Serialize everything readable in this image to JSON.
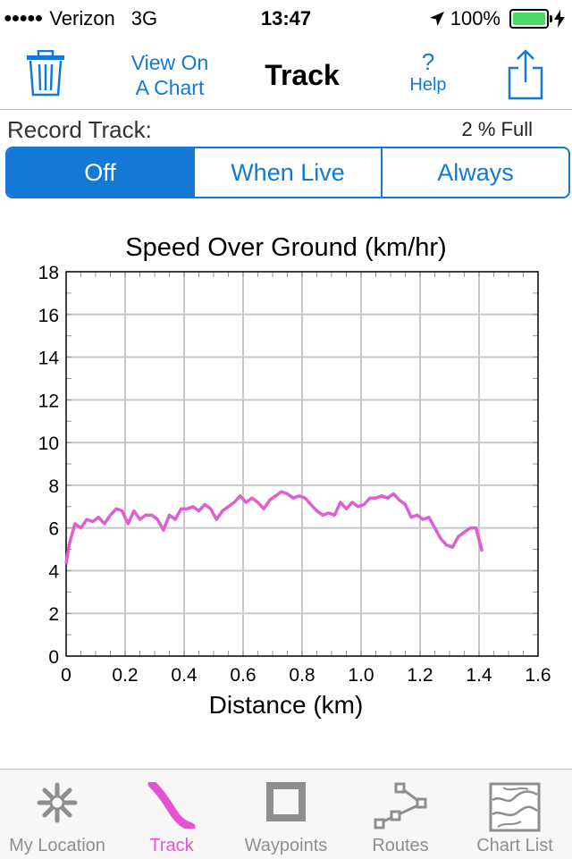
{
  "status": {
    "signal_dots": "●●●●●",
    "carrier": "Verizon",
    "network": "3G",
    "time": "13:47",
    "battery_percent": "100%"
  },
  "nav": {
    "view_chart_line1": "View On",
    "view_chart_line2": "A Chart",
    "title": "Track",
    "help_symbol": "?",
    "help_label": "Help"
  },
  "record": {
    "label": "Record Track:",
    "capacity": "2 % Full",
    "options": [
      "Off",
      "When Live",
      "Always"
    ],
    "selected": "Off"
  },
  "chart_data": {
    "type": "line",
    "title": "Speed Over Ground (km/hr)",
    "xlabel": "Distance (km)",
    "ylabel": "",
    "xlim": [
      0,
      1.6
    ],
    "ylim": [
      0,
      18
    ],
    "xticks": [
      "0",
      "0.2",
      "0.4",
      "0.6",
      "0.8",
      "1.0",
      "1.2",
      "1.4",
      "1.6"
    ],
    "yticks": [
      "0",
      "2",
      "4",
      "6",
      "8",
      "10",
      "12",
      "14",
      "16",
      "18"
    ],
    "grid": true,
    "color": "#dd5fd2",
    "series": [
      {
        "x": [
          0.0,
          0.01,
          0.03,
          0.05,
          0.07,
          0.09,
          0.11,
          0.13,
          0.15,
          0.17,
          0.19,
          0.21,
          0.23,
          0.25,
          0.27,
          0.29,
          0.31,
          0.33,
          0.35,
          0.37,
          0.39,
          0.41,
          0.43,
          0.45,
          0.47,
          0.49,
          0.51,
          0.53,
          0.55,
          0.57,
          0.59,
          0.61,
          0.63,
          0.65,
          0.67,
          0.69,
          0.71,
          0.73,
          0.75,
          0.77,
          0.79,
          0.81,
          0.83,
          0.85,
          0.87,
          0.89,
          0.91,
          0.93,
          0.95,
          0.97,
          0.99,
          1.01,
          1.03,
          1.05,
          1.07,
          1.09,
          1.11,
          1.13,
          1.15,
          1.17,
          1.19,
          1.21,
          1.23,
          1.25,
          1.27,
          1.29,
          1.31,
          1.33,
          1.35,
          1.37,
          1.39,
          1.41
        ],
        "y": [
          4.3,
          5.2,
          6.2,
          6.0,
          6.4,
          6.3,
          6.5,
          6.2,
          6.6,
          6.9,
          6.8,
          6.2,
          6.8,
          6.4,
          6.6,
          6.6,
          6.4,
          5.9,
          6.6,
          6.4,
          6.9,
          6.9,
          7.0,
          6.8,
          7.1,
          6.9,
          6.4,
          6.8,
          7.0,
          7.2,
          7.5,
          7.2,
          7.4,
          7.2,
          6.9,
          7.3,
          7.5,
          7.7,
          7.6,
          7.4,
          7.5,
          7.4,
          7.1,
          6.8,
          6.6,
          6.7,
          6.6,
          7.2,
          6.9,
          7.2,
          7.0,
          7.1,
          7.4,
          7.4,
          7.5,
          7.4,
          7.6,
          7.3,
          7.1,
          6.5,
          6.6,
          6.4,
          6.5,
          6.0,
          5.5,
          5.2,
          5.1,
          5.6,
          5.8,
          6.0,
          6.0,
          4.9
        ]
      }
    ]
  },
  "tabs": [
    {
      "label": "My Location",
      "active": false
    },
    {
      "label": "Track",
      "active": true
    },
    {
      "label": "Waypoints",
      "active": false
    },
    {
      "label": "Routes",
      "active": false
    },
    {
      "label": "Chart List",
      "active": false
    }
  ]
}
